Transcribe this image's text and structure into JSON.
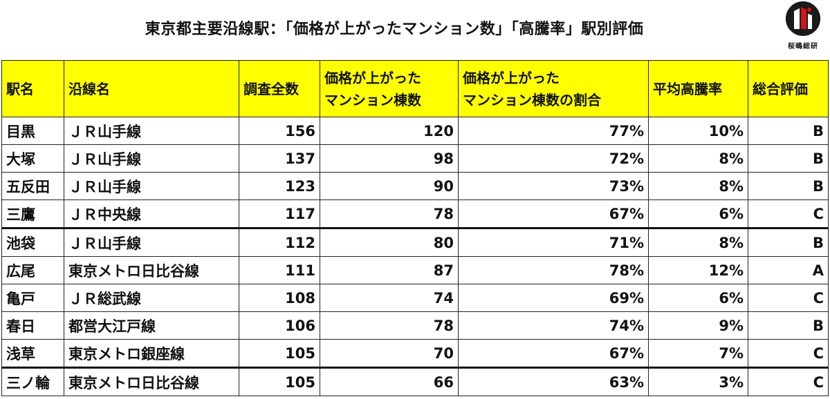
{
  "title": "東京都主要沿線駅：「価格が上がったマンション数」「高騰率」駅別評価",
  "logo": {
    "text": "桜嶋総研"
  },
  "table": {
    "headers": {
      "station": "駅名",
      "line": "沿線名",
      "total": "調査全数",
      "rose_1": "価格が上がった",
      "rose_2": "マンション棟数",
      "ratio_1": "価格が上がった",
      "ratio_2": "マンション棟数の割合",
      "avg": "平均高騰率",
      "grade": "総合評価"
    },
    "rows": [
      {
        "station": "目黒",
        "line": "ＪＲ山手線",
        "total": "156",
        "rose": "120",
        "ratio": "77%",
        "avg": "10%",
        "grade": "B"
      },
      {
        "station": "大塚",
        "line": "ＪＲ山手線",
        "total": "137",
        "rose": "98",
        "ratio": "72%",
        "avg": "8%",
        "grade": "B"
      },
      {
        "station": "五反田",
        "line": "ＪＲ山手線",
        "total": "123",
        "rose": "90",
        "ratio": "73%",
        "avg": "8%",
        "grade": "B"
      },
      {
        "station": "三鷹",
        "line": "ＪＲ中央線",
        "total": "117",
        "rose": "78",
        "ratio": "67%",
        "avg": "6%",
        "grade": "C"
      },
      {
        "station": "池袋",
        "line": "ＪＲ山手線",
        "total": "112",
        "rose": "80",
        "ratio": "71%",
        "avg": "8%",
        "grade": "B"
      },
      {
        "station": "広尾",
        "line": "東京メトロ日比谷線",
        "total": "111",
        "rose": "87",
        "ratio": "78%",
        "avg": "12%",
        "grade": "A"
      },
      {
        "station": "亀戸",
        "line": "ＪＲ総武線",
        "total": "108",
        "rose": "74",
        "ratio": "69%",
        "avg": "6%",
        "grade": "C"
      },
      {
        "station": "春日",
        "line": "都営大江戸線",
        "total": "106",
        "rose": "78",
        "ratio": "74%",
        "avg": "9%",
        "grade": "B"
      },
      {
        "station": "浅草",
        "line": "東京メトロ銀座線",
        "total": "105",
        "rose": "70",
        "ratio": "67%",
        "avg": "7%",
        "grade": "C"
      },
      {
        "station": "三ノ輪",
        "line": "東京メトロ日比谷線",
        "total": "105",
        "rose": "66",
        "ratio": "63%",
        "avg": "3%",
        "grade": "C"
      }
    ]
  }
}
